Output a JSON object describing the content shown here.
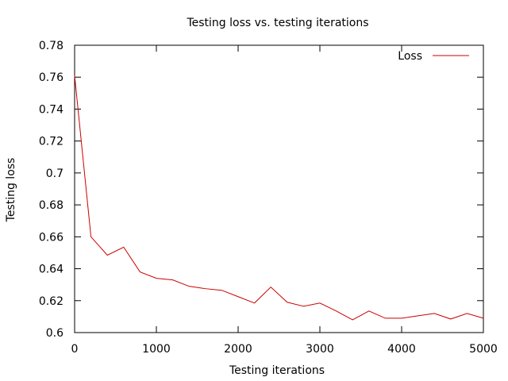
{
  "chart_data": {
    "type": "line",
    "title": "Testing loss vs. testing iterations",
    "xlabel": "Testing iterations",
    "ylabel": "Testing loss",
    "xlim": [
      0,
      5000
    ],
    "ylim": [
      0.6,
      0.78
    ],
    "xticks": [
      0,
      1000,
      2000,
      3000,
      4000,
      5000
    ],
    "yticks": [
      0.6,
      0.62,
      0.64,
      0.66,
      0.68,
      0.7,
      0.72,
      0.74,
      0.76,
      0.78
    ],
    "xtick_labels": [
      "0",
      "1000",
      "2000",
      "3000",
      "4000",
      "5000"
    ],
    "ytick_labels": [
      "0.6",
      "0.62",
      "0.64",
      "0.66",
      "0.68",
      "0.7",
      "0.72",
      "0.74",
      "0.76",
      "0.78"
    ],
    "grid": false,
    "legend": {
      "position": "top-right",
      "entries": [
        "Loss"
      ]
    },
    "series": [
      {
        "name": "Loss",
        "color": "#cc0000",
        "x": [
          0,
          200,
          400,
          600,
          800,
          1000,
          1200,
          1400,
          1600,
          1800,
          2000,
          2200,
          2400,
          2600,
          2800,
          3000,
          3200,
          3400,
          3600,
          3800,
          4000,
          4200,
          4400,
          4600,
          4800,
          5000
        ],
        "values": [
          0.761,
          0.66,
          0.6485,
          0.6535,
          0.638,
          0.634,
          0.633,
          0.629,
          0.6275,
          0.6265,
          0.6225,
          0.6185,
          0.6285,
          0.619,
          0.6165,
          0.6185,
          0.6135,
          0.608,
          0.6135,
          0.609,
          0.609,
          0.6105,
          0.612,
          0.6085,
          0.612,
          0.609
        ]
      }
    ]
  }
}
